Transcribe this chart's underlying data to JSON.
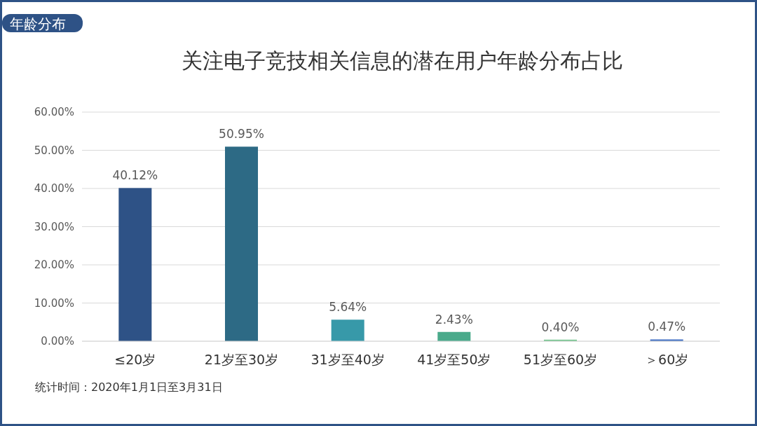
{
  "chart_data": {
    "type": "bar",
    "title": "关注电子竞技相关信息的潜在用户年龄分布占比",
    "annotations": [
      "年龄分布",
      "统计时间：2020年1月1日至3月31日"
    ],
    "categories": [
      "≤20岁",
      "21岁至30岁",
      "31岁至40岁",
      "41岁至50岁",
      "51岁至60岁",
      "＞60岁"
    ],
    "values": [
      40.12,
      50.95,
      5.64,
      2.43,
      0.4,
      0.47
    ],
    "value_labels": [
      "40.12%",
      "50.95%",
      "5.64%",
      "2.43%",
      "0.40%",
      "0.47%"
    ],
    "colors": [
      "#2e5286",
      "#2d6a85",
      "#3799a9",
      "#4aaa8b",
      "#72c48c",
      "#4472c4"
    ],
    "ylim": [
      0,
      60
    ],
    "yticks": [
      {
        "value": 0,
        "label": "0.00%"
      },
      {
        "value": 10,
        "label": "10.00%"
      },
      {
        "value": 20,
        "label": "20.00%"
      },
      {
        "value": 30,
        "label": "30.00%"
      },
      {
        "value": 40,
        "label": "40.00%"
      },
      {
        "value": 50,
        "label": "50.00%"
      },
      {
        "value": 60,
        "label": "60.00%"
      }
    ],
    "grid": "y"
  }
}
